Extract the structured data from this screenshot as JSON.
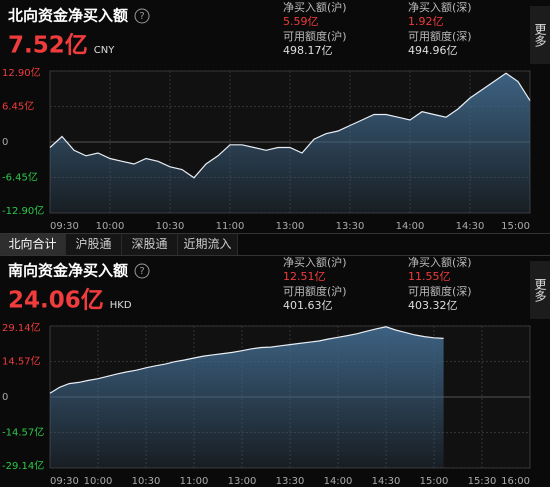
{
  "tabs": [
    "北向合计",
    "沪股通",
    "深股通",
    "近期流入"
  ],
  "chart_data": [
    {
      "type": "area",
      "title": "北向资金净买入额",
      "headline": "7.52亿",
      "currency": "CNY",
      "stats": [
        {
          "label": "净买入额(沪)",
          "value": "5.59亿"
        },
        {
          "label": "净买入额(深)",
          "value": "1.92亿"
        },
        {
          "label": "可用额度(沪)",
          "value": "498.17亿"
        },
        {
          "label": "可用额度(深)",
          "value": "494.96亿"
        }
      ],
      "more": "更多",
      "xticks": [
        "09:30",
        "10:00",
        "10:30",
        "11:00",
        "13:00",
        "13:30",
        "14:00",
        "14:30",
        "15:00"
      ],
      "ylim": [
        -12.9,
        12.9
      ],
      "yticks": [
        {
          "value": 12.9,
          "label": "12.90亿"
        },
        {
          "value": 6.45,
          "label": "6.45亿"
        },
        0,
        {
          "value": -6.45,
          "label": "-6.45亿"
        },
        {
          "value": -12.9,
          "label": "-12.90亿"
        }
      ],
      "color": "#e8eef5",
      "fill": "#3f6688",
      "values": [
        -1.0,
        1.0,
        -1.5,
        -2.5,
        -2.0,
        -3.0,
        -3.5,
        -4.0,
        -3.0,
        -3.5,
        -4.5,
        -5.0,
        -6.5,
        -4.0,
        -2.5,
        -0.5,
        -0.5,
        -1.0,
        -1.5,
        -1.0,
        -1.0,
        -2.0,
        0.5,
        1.5,
        2.0,
        3.0,
        4.0,
        5.0,
        5.0,
        4.5,
        4.0,
        5.5,
        5.0,
        4.5,
        6.0,
        8.0,
        9.5,
        11.0,
        12.5,
        11.0,
        7.52
      ]
    },
    {
      "type": "area",
      "title": "南向资金净买入额",
      "headline": "24.06亿",
      "currency": "HKD",
      "stats": [
        {
          "label": "净买入额(沪)",
          "value": "12.51亿"
        },
        {
          "label": "净买入额(深)",
          "value": "11.55亿"
        },
        {
          "label": "可用额度(沪)",
          "value": "401.63亿"
        },
        {
          "label": "可用额度(深)",
          "value": "403.32亿"
        }
      ],
      "more": "更多",
      "xticks": [
        "09:30",
        "10:00",
        "10:30",
        "11:00",
        "13:00",
        "13:30",
        "14:00",
        "14:30",
        "15:00",
        "15:30",
        "16:00"
      ],
      "ylim": [
        -29.14,
        29.14
      ],
      "yticks": [
        {
          "value": 29.14,
          "label": "29.14亿"
        },
        {
          "value": 14.57,
          "label": "14.57亿"
        },
        0,
        {
          "value": -14.57,
          "label": "-14.57亿"
        },
        {
          "value": -29.14,
          "label": "-29.14亿"
        }
      ],
      "color": "#e8eef5",
      "fill": "#3f6688",
      "values": [
        1.5,
        4.0,
        5.5,
        6.0,
        6.8,
        7.5,
        8.5,
        9.5,
        10.3,
        11.0,
        12.0,
        12.8,
        13.5,
        14.5,
        15.2,
        16.0,
        16.8,
        17.3,
        17.8,
        18.3,
        19.0,
        19.8,
        20.3,
        20.5,
        21.0,
        21.5,
        22.0,
        22.5,
        23.0,
        23.8,
        24.5,
        25.2,
        26.0,
        27.0,
        28.0,
        28.8,
        27.5,
        26.5,
        25.5,
        24.8,
        24.3,
        24.06,
        null,
        null,
        null,
        null,
        null,
        null,
        null,
        null,
        null
      ]
    }
  ]
}
